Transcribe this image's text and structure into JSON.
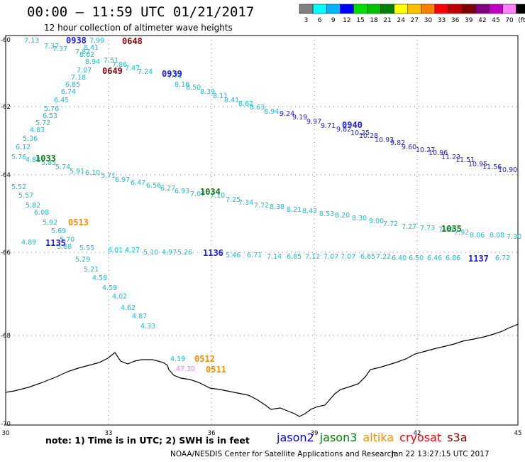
{
  "header": {
    "title": "00:00 – 11:59 UTC 01/21/2017",
    "subtitle": "12 hour collection of altimeter wave heights"
  },
  "colorbar": {
    "labels": [
      "3",
      "6",
      "9",
      "12",
      "15",
      "18",
      "21",
      "24",
      "27",
      "30",
      "33",
      "36",
      "39",
      "42",
      "45",
      "70",
      "(ft)"
    ],
    "colors": [
      "#808080",
      "#00ffff",
      "#00b4ff",
      "#0000ff",
      "#00e000",
      "#00c000",
      "#008000",
      "#ffff00",
      "#ffc000",
      "#ff8000",
      "#ff0000",
      "#c00000",
      "#800000",
      "#800080",
      "#c000c0",
      "#ff80ff",
      "#000000"
    ]
  },
  "axes": {
    "lon_ticks": [
      "30",
      "33",
      "36",
      "39",
      "42",
      "45"
    ],
    "lat_ticks": [
      "-60",
      "-62",
      "-64",
      "-66",
      "-68",
      "-70"
    ]
  },
  "tracks": [
    {
      "satellite": "jason2",
      "color": "#1a1aff",
      "labels": [
        "0938",
        "0939",
        "0940",
        "1135",
        "1136",
        "1137"
      ],
      "values": [
        "9.24",
        "9.19",
        "9.97",
        "9.71",
        "9.82",
        "10.25",
        "10.28",
        "10.93",
        "9.82",
        "9.60",
        "10.27",
        "10.96",
        "11.23",
        "11.51",
        "10.95",
        "11.56",
        "10.90"
      ]
    },
    {
      "satellite": "jason3",
      "color": "#108010",
      "labels": [
        "1033",
        "1034",
        "1035"
      ]
    },
    {
      "satellite": "altika",
      "color": "#ff8c00",
      "labels": [
        "0513",
        "0512",
        "0511"
      ]
    },
    {
      "satellite": "cryosat",
      "color": "#8b0000",
      "labels": [
        "0648",
        "0649"
      ]
    }
  ],
  "wave_values": {
    "cyan_a": [
      "7.13",
      "7.37",
      "7.37",
      "7.99",
      "8.41",
      "7.82",
      "8.02",
      "8.94",
      "7.51",
      "7.86",
      "7.47",
      "7.24",
      "7.07",
      "7.18",
      "6.85",
      "6.74",
      "6.45",
      "5.76",
      "6.53",
      "5.72",
      "4.83",
      "5.36",
      "6.12",
      "5.76",
      "4.88",
      "5.85",
      "5.74",
      "5.91",
      "6.10",
      "5.71",
      "6.97",
      "6.47",
      "6.56",
      "6.27",
      "6.93",
      "7.07",
      "7.10",
      "7.25",
      "7.34",
      "7.72",
      "8.38",
      "8.21",
      "8.42",
      "8.53",
      "8.20",
      "8.30",
      "9.00",
      "7.72",
      "7.27",
      "7.73",
      "7.49",
      "7.92",
      "8.06",
      "8.08",
      "7.30"
    ],
    "cyan_b": [
      "5.52",
      "5.57",
      "5.82",
      "6.08",
      "5.92",
      "5.69",
      "5.70",
      "4.89",
      "5.88",
      "5.55",
      "6.01",
      "4.27",
      "5.10",
      "4.97",
      "5.26",
      "5.46",
      "6.71",
      "7.14",
      "6.85",
      "7.12",
      "7.07",
      "7.07",
      "6.65",
      "7.22",
      "6.40",
      "6.50",
      "6.46",
      "6.86",
      "6.72"
    ],
    "cyan_c": [
      "5.29",
      "5.21",
      "4.59",
      "4.59",
      "4.02",
      "4.62",
      "4.87",
      "4.33",
      "4.19"
    ],
    "cyan_d": [
      "7.71",
      "8.16",
      "8.50",
      "8.39",
      "8.11",
      "8.41",
      "8.62",
      "8.63",
      "8.94"
    ],
    "pink": [
      "47.30"
    ]
  },
  "legend": {
    "note": "note:  1) Time is in UTC;  2) SWH is in feet",
    "sats": [
      {
        "name": "jason2",
        "color": "#0000ff"
      },
      {
        "name": "jason3",
        "color": "#008000"
      },
      {
        "name": "altika",
        "color": "#ff8c00"
      },
      {
        "name": "cryosat",
        "color": "#ff0000"
      },
      {
        "name": "s3a",
        "color": "#8b0000"
      }
    ]
  },
  "footer": {
    "credit": "NOAA/NESDIS Center for Satellite Applications and Research",
    "timestamp": "Jan 22 13:27:15 UTC 2017"
  }
}
